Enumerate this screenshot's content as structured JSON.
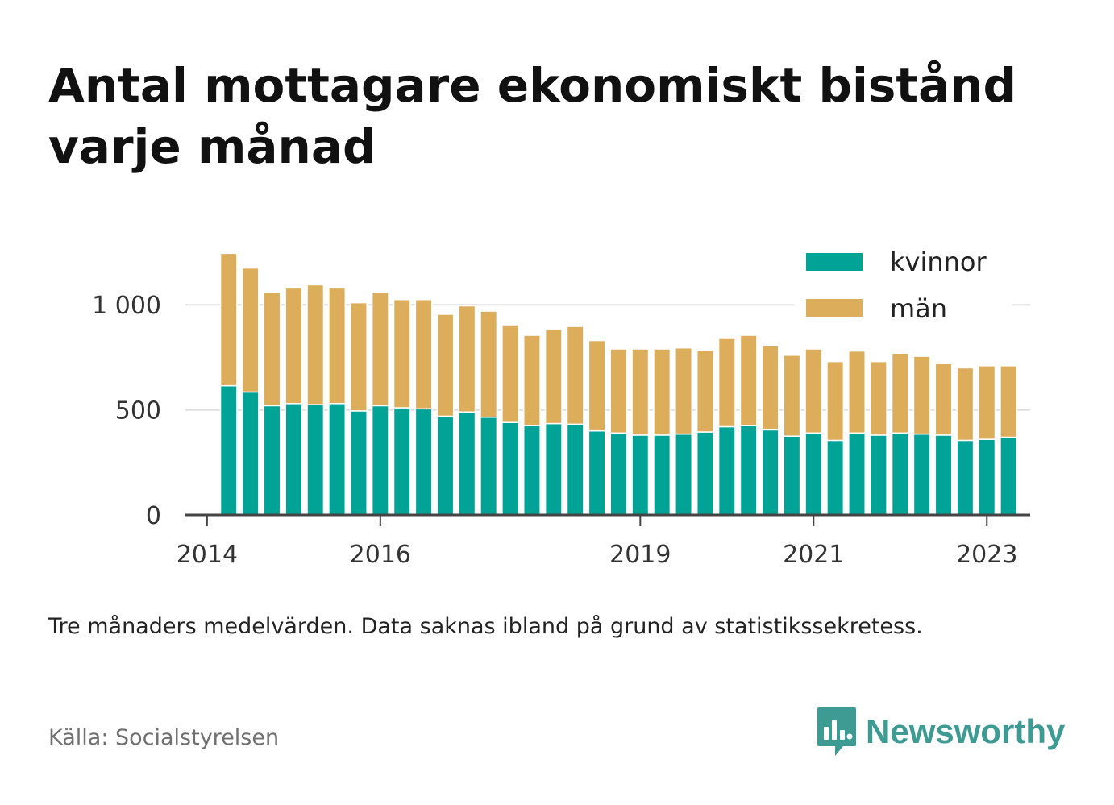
{
  "title": "Antal mottagare ekonomiskt bistånd varje månad",
  "note": "Tre månaders medelvärden. Data saknas ibland på grund av statistikssekretess.",
  "source": "Källa: Socialstyrelsen",
  "brand": {
    "name": "Newsworthy",
    "logo_icon": "newsworthy-chart-bubble-icon"
  },
  "colors": {
    "kvinnor": "#00a396",
    "man": "#dcad5b",
    "axis": "#444444",
    "grid": "#dddddd"
  },
  "chart_data": {
    "type": "bar",
    "stacked": true,
    "x_type": "date",
    "ylim": [
      0,
      1300
    ],
    "yticks": [
      0,
      500,
      1000
    ],
    "ytick_labels": [
      "0",
      "500",
      "1 000"
    ],
    "xticks": [
      {
        "date": "2014-01",
        "label": "2014"
      },
      {
        "date": "2016-01",
        "label": "2016"
      },
      {
        "date": "2019-01",
        "label": "2019"
      },
      {
        "date": "2021-01",
        "label": "2021"
      },
      {
        "date": "2023-01",
        "label": "2023"
      }
    ],
    "xlim": [
      "2013-10",
      "2023-07"
    ],
    "grid": "horizontal",
    "legend": "top-right",
    "x": [
      "2014-04",
      "2014-07",
      "2014-10",
      "2015-01",
      "2015-04",
      "2015-07",
      "2015-10",
      "2016-01",
      "2016-04",
      "2016-07",
      "2016-10",
      "2017-01",
      "2017-04",
      "2017-07",
      "2017-10",
      "2018-01",
      "2018-04",
      "2018-07",
      "2018-10",
      "2019-01",
      "2019-04",
      "2019-07",
      "2019-10",
      "2020-01",
      "2020-04",
      "2020-07",
      "2020-10",
      "2021-01",
      "2021-04",
      "2021-07",
      "2021-10",
      "2022-01",
      "2022-04",
      "2022-07",
      "2022-10",
      "2023-01",
      "2023-04"
    ],
    "series": [
      {
        "name": "kvinnor",
        "values": [
          615,
          585,
          520,
          530,
          525,
          530,
          495,
          520,
          510,
          505,
          470,
          490,
          465,
          440,
          425,
          435,
          432,
          400,
          390,
          380,
          380,
          385,
          395,
          420,
          425,
          405,
          375,
          390,
          355,
          390,
          380,
          390,
          385,
          380,
          355,
          360,
          370
        ]
      },
      {
        "name": "män",
        "values": [
          630,
          590,
          540,
          550,
          570,
          550,
          515,
          540,
          515,
          520,
          485,
          505,
          505,
          465,
          430,
          450,
          465,
          430,
          400,
          410,
          410,
          410,
          390,
          420,
          430,
          400,
          385,
          400,
          375,
          390,
          350,
          380,
          370,
          340,
          345,
          350,
          340
        ]
      }
    ]
  }
}
